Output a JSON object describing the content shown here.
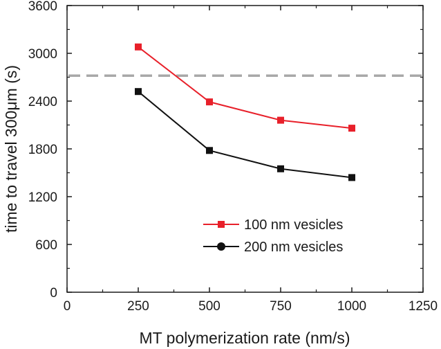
{
  "chart_data": {
    "type": "line",
    "xlabel": "MT polymerization rate (nm/s)",
    "ylabel": "time to travel 300μm (s)",
    "xlim": [
      0,
      1250
    ],
    "ylim": [
      0,
      3600
    ],
    "x_ticks": [
      0,
      250,
      500,
      750,
      1000,
      1250
    ],
    "y_ticks": [
      0,
      600,
      1200,
      1800,
      2400,
      3000,
      3600
    ],
    "grid": false,
    "legend_position": "bottom-right",
    "x": [
      250,
      500,
      750,
      1000
    ],
    "series": [
      {
        "name": "100 nm vesicles",
        "color": "#e8202a",
        "marker": "square",
        "values": [
          3080,
          2390,
          2160,
          2060
        ]
      },
      {
        "name": "200 nm vesicles",
        "color": "#111111",
        "marker": "square",
        "legend_marker": "circle",
        "values": [
          2520,
          1780,
          1550,
          1440
        ]
      }
    ],
    "reference_line": {
      "y": 2720,
      "style": "dashed",
      "color": "#a8a8a8"
    }
  }
}
